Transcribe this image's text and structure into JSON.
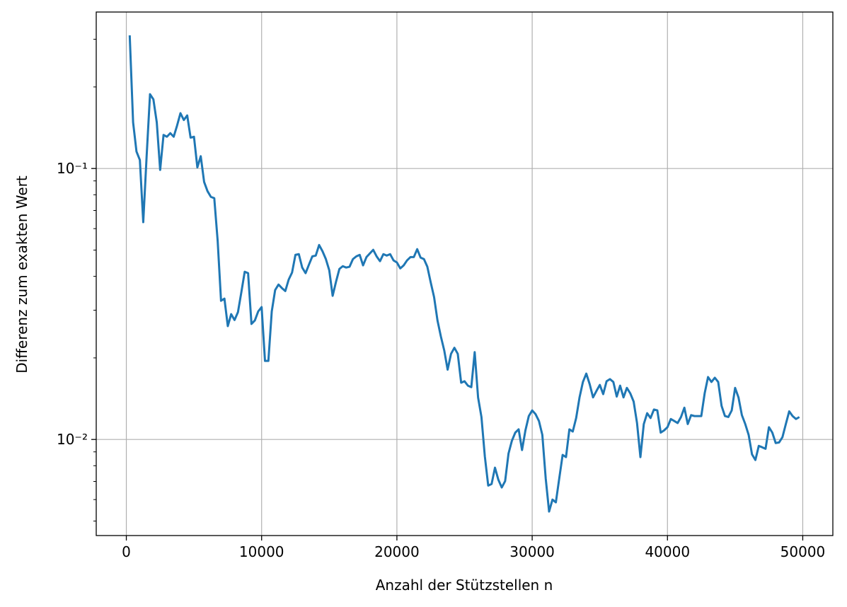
{
  "chart_data": {
    "type": "line",
    "xlabel": "Anzahl der Stützstellen n",
    "ylabel": "Differenz zum exakten Wert",
    "color": "#1f77b4",
    "grid": true,
    "yscale": "log",
    "xlim": [
      -2225,
      52225
    ],
    "xticks": [
      0,
      10000,
      20000,
      30000,
      40000,
      50000
    ],
    "ylim": [
      0.00442,
      0.378
    ],
    "yticks": [
      {
        "value": 0.01,
        "label": "10⁻²"
      },
      {
        "value": 0.1,
        "label": "10⁻¹"
      }
    ],
    "yminorticks": [
      0.005,
      0.006,
      0.007,
      0.008,
      0.009,
      0.02,
      0.03,
      0.04,
      0.05,
      0.06,
      0.07,
      0.08,
      0.09,
      0.2,
      0.3
    ],
    "x": [
      250,
      500,
      750,
      1000,
      1250,
      1500,
      1750,
      2000,
      2250,
      2500,
      2750,
      3000,
      3250,
      3500,
      3750,
      4000,
      4250,
      4500,
      4750,
      5000,
      5250,
      5500,
      5750,
      6000,
      6250,
      6500,
      6750,
      7000,
      7250,
      7500,
      7750,
      8000,
      8250,
      8500,
      8750,
      9000,
      9250,
      9500,
      9750,
      10000,
      10250,
      10500,
      10750,
      11000,
      11250,
      11500,
      11750,
      12000,
      12250,
      12500,
      12750,
      13000,
      13250,
      13500,
      13750,
      14000,
      14250,
      14500,
      14750,
      15000,
      15250,
      15500,
      15750,
      16000,
      16250,
      16500,
      16750,
      17000,
      17250,
      17500,
      17750,
      18000,
      18250,
      18500,
      18750,
      19000,
      19250,
      19500,
      19750,
      20000,
      20250,
      20500,
      20750,
      21000,
      21250,
      21500,
      21750,
      22000,
      22250,
      22500,
      22750,
      23000,
      23250,
      23500,
      23750,
      24000,
      24250,
      24500,
      24750,
      25000,
      25250,
      25500,
      25750,
      26000,
      26250,
      26500,
      26750,
      27000,
      27250,
      27500,
      27750,
      28000,
      28250,
      28500,
      28750,
      29000,
      29250,
      29500,
      29750,
      30000,
      30250,
      30500,
      30750,
      31000,
      31250,
      31500,
      31750,
      32000,
      32250,
      32500,
      32750,
      33000,
      33250,
      33500,
      33750,
      34000,
      34250,
      34500,
      34750,
      35000,
      35250,
      35500,
      35750,
      36000,
      36250,
      36500,
      36750,
      37000,
      37250,
      37500,
      37750,
      38000,
      38250,
      38500,
      38750,
      39000,
      39250,
      39500,
      39750,
      40000,
      40250,
      40500,
      40750,
      41000,
      41250,
      41500,
      41750,
      42000,
      42250,
      42500,
      42750,
      43000,
      43250,
      43500,
      43750,
      44000,
      44250,
      44500,
      44750,
      45000,
      45250,
      45500,
      45750,
      46000,
      46250,
      46500,
      46750,
      47000,
      47250,
      47500,
      47750,
      48000,
      48250,
      48500,
      48750,
      49000,
      49250,
      49500,
      49750
    ],
    "values": [
      0.31,
      0.148,
      0.1155,
      0.1075,
      0.0634,
      0.111,
      0.188,
      0.18,
      0.148,
      0.0988,
      0.133,
      0.131,
      0.135,
      0.131,
      0.144,
      0.16,
      0.151,
      0.157,
      0.13,
      0.131,
      0.101,
      0.111,
      0.0892,
      0.0825,
      0.0786,
      0.0777,
      0.0542,
      0.0325,
      0.0331,
      0.0262,
      0.029,
      0.0276,
      0.0295,
      0.0349,
      0.0416,
      0.0411,
      0.0267,
      0.0275,
      0.0297,
      0.0308,
      0.0195,
      0.0195,
      0.0297,
      0.0356,
      0.0373,
      0.0362,
      0.0353,
      0.0389,
      0.0413,
      0.048,
      0.0483,
      0.0431,
      0.0411,
      0.0442,
      0.0474,
      0.0477,
      0.0522,
      0.0495,
      0.0463,
      0.0421,
      0.0339,
      0.0382,
      0.0426,
      0.0436,
      0.0431,
      0.0434,
      0.0463,
      0.0474,
      0.048,
      0.0439,
      0.0471,
      0.0486,
      0.0501,
      0.0474,
      0.0455,
      0.0483,
      0.0477,
      0.0483,
      0.0458,
      0.045,
      0.0428,
      0.0439,
      0.0458,
      0.0471,
      0.0471,
      0.0504,
      0.0469,
      0.0463,
      0.0434,
      0.038,
      0.0335,
      0.0275,
      0.024,
      0.0213,
      0.0181,
      0.0207,
      0.0218,
      0.0207,
      0.0162,
      0.0164,
      0.0158,
      0.0156,
      0.021,
      0.0143,
      0.0121,
      0.00866,
      0.00676,
      0.00685,
      0.00787,
      0.0071,
      0.00665,
      0.00702,
      0.00887,
      0.00989,
      0.0106,
      0.0109,
      0.00914,
      0.0108,
      0.0122,
      0.0128,
      0.0124,
      0.0117,
      0.0104,
      0.00718,
      0.00542,
      0.006,
      0.00586,
      0.00718,
      0.00877,
      0.00861,
      0.0109,
      0.0107,
      0.012,
      0.0143,
      0.0163,
      0.0175,
      0.016,
      0.0143,
      0.0151,
      0.0159,
      0.0147,
      0.0164,
      0.0167,
      0.0163,
      0.0144,
      0.0158,
      0.0143,
      0.0155,
      0.0148,
      0.0138,
      0.0115,
      0.00861,
      0.0114,
      0.0125,
      0.012,
      0.0129,
      0.0128,
      0.0106,
      0.0108,
      0.0111,
      0.0119,
      0.0117,
      0.0115,
      0.0121,
      0.0131,
      0.0114,
      0.0123,
      0.0122,
      0.0122,
      0.0122,
      0.0148,
      0.017,
      0.0163,
      0.0169,
      0.0163,
      0.0133,
      0.0122,
      0.0121,
      0.0128,
      0.0155,
      0.0143,
      0.0123,
      0.0114,
      0.0104,
      0.00881,
      0.0084,
      0.00947,
      0.00936,
      0.00924,
      0.0111,
      0.0106,
      0.0097,
      0.00975,
      0.0102,
      0.0114,
      0.0127,
      0.0122,
      0.0119,
      0.0121
    ]
  }
}
